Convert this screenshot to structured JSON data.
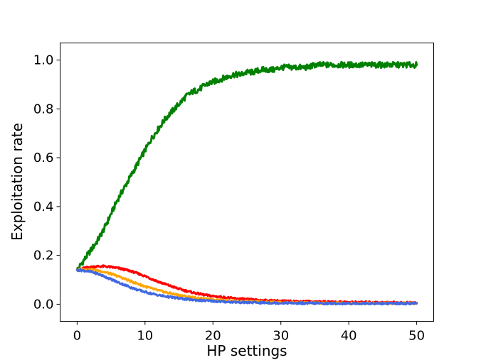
{
  "chart_data": {
    "type": "line",
    "title": "",
    "xlabel": "HP settings",
    "ylabel": "Exploitation rate",
    "xlim": [
      -2.5,
      52.5
    ],
    "ylim": [
      -0.07,
      1.07
    ],
    "xticks": [
      0,
      10,
      20,
      30,
      40,
      50
    ],
    "xtick_labels": [
      "0",
      "10",
      "20",
      "30",
      "40",
      "50"
    ],
    "yticks": [
      0.0,
      0.2,
      0.4,
      0.6,
      0.8,
      1.0
    ],
    "ytick_labels": [
      "0.0",
      "0.2",
      "0.4",
      "0.6",
      "0.8",
      "1.0"
    ],
    "grid": false,
    "legend": "none",
    "x": [
      0,
      1,
      2,
      3,
      4,
      5,
      6,
      7,
      8,
      9,
      10,
      11,
      12,
      13,
      14,
      15,
      16,
      17,
      18,
      19,
      20,
      21,
      22,
      23,
      24,
      25,
      26,
      27,
      28,
      29,
      30,
      31,
      32,
      33,
      34,
      35,
      36,
      37,
      38,
      39,
      40,
      41,
      42,
      43,
      44,
      45,
      46,
      47,
      48,
      49,
      50
    ],
    "series": [
      {
        "color": "#008000",
        "values": [
          0.14,
          0.18,
          0.22,
          0.26,
          0.31,
          0.37,
          0.43,
          0.48,
          0.53,
          0.58,
          0.63,
          0.68,
          0.72,
          0.76,
          0.79,
          0.82,
          0.85,
          0.87,
          0.88,
          0.9,
          0.91,
          0.92,
          0.93,
          0.94,
          0.94,
          0.95,
          0.95,
          0.96,
          0.96,
          0.96,
          0.97,
          0.97,
          0.97,
          0.97,
          0.97,
          0.98,
          0.98,
          0.98,
          0.98,
          0.98,
          0.98,
          0.98,
          0.98,
          0.98,
          0.98,
          0.98,
          0.98,
          0.98,
          0.98,
          0.98,
          0.98
        ]
      },
      {
        "color": "#ff0000",
        "values": [
          0.14,
          0.148,
          0.152,
          0.155,
          0.155,
          0.152,
          0.148,
          0.142,
          0.135,
          0.125,
          0.115,
          0.103,
          0.092,
          0.082,
          0.072,
          0.063,
          0.055,
          0.048,
          0.042,
          0.037,
          0.033,
          0.03,
          0.027,
          0.024,
          0.022,
          0.02,
          0.018,
          0.016,
          0.015,
          0.014,
          0.013,
          0.012,
          0.012,
          0.011,
          0.011,
          0.01,
          0.01,
          0.009,
          0.009,
          0.009,
          0.008,
          0.008,
          0.008,
          0.008,
          0.007,
          0.007,
          0.007,
          0.007,
          0.006,
          0.006,
          0.006
        ]
      },
      {
        "color": "#ffa500",
        "values": [
          0.14,
          0.143,
          0.142,
          0.138,
          0.132,
          0.124,
          0.115,
          0.104,
          0.093,
          0.083,
          0.073,
          0.064,
          0.056,
          0.049,
          0.043,
          0.037,
          0.032,
          0.028,
          0.024,
          0.021,
          0.019,
          0.017,
          0.015,
          0.013,
          0.012,
          0.011,
          0.01,
          0.009,
          0.008,
          0.008,
          0.007,
          0.007,
          0.006,
          0.006,
          0.006,
          0.005,
          0.005,
          0.005,
          0.005,
          0.005,
          0.004,
          0.004,
          0.004,
          0.004,
          0.004,
          0.004,
          0.004,
          0.004,
          0.004,
          0.004,
          0.004
        ]
      },
      {
        "color": "#4169e1",
        "values": [
          0.14,
          0.138,
          0.133,
          0.125,
          0.114,
          0.102,
          0.09,
          0.079,
          0.068,
          0.058,
          0.05,
          0.043,
          0.037,
          0.032,
          0.028,
          0.024,
          0.021,
          0.018,
          0.016,
          0.014,
          0.013,
          0.011,
          0.01,
          0.009,
          0.008,
          0.007,
          0.007,
          0.006,
          0.006,
          0.005,
          0.005,
          0.005,
          0.004,
          0.004,
          0.004,
          0.004,
          0.003,
          0.003,
          0.003,
          0.003,
          0.003,
          0.003,
          0.003,
          0.003,
          0.003,
          0.003,
          0.003,
          0.003,
          0.003,
          0.003,
          0.003
        ]
      }
    ]
  }
}
